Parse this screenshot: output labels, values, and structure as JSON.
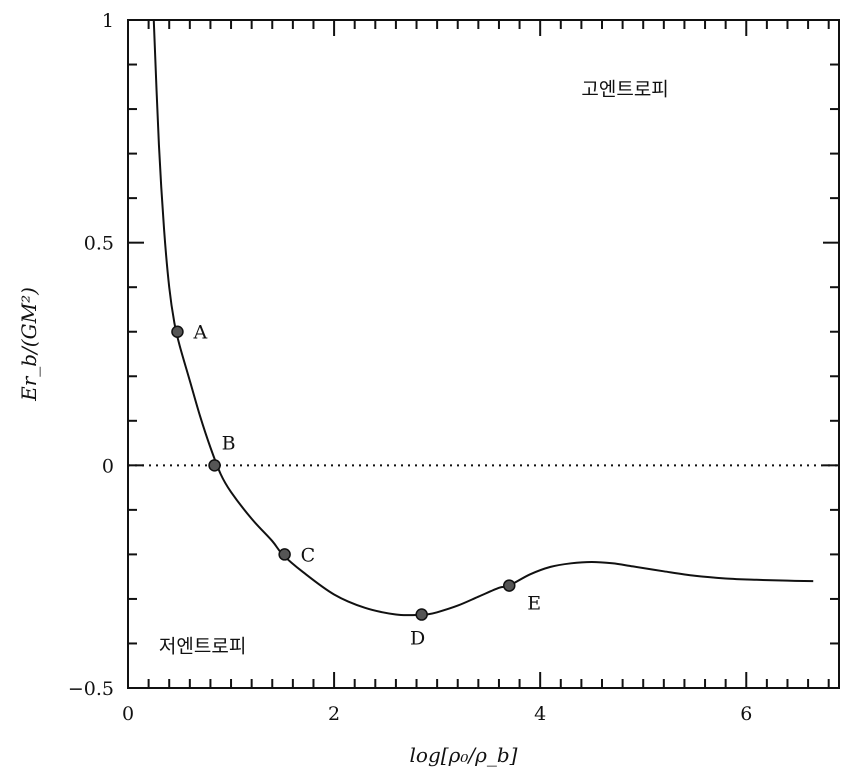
{
  "chart_data": {
    "type": "line",
    "xlabel": "log[ρ₀/ρ_b]",
    "ylabel": "Er_b/(GM²)",
    "xlim": [
      0,
      6.9
    ],
    "ylim": [
      -0.5,
      1
    ],
    "x_ticks": [
      0,
      2,
      4,
      6
    ],
    "x_tick_labels": [
      "0",
      "2",
      "4",
      "6"
    ],
    "y_ticks": [
      -0.5,
      0,
      0.5,
      1
    ],
    "y_tick_labels": [
      "−0.5",
      "0",
      "0.5",
      "1"
    ],
    "reference_line": {
      "y": 0,
      "style": "dotted"
    },
    "series": [
      {
        "x": [
          0.25,
          0.3,
          0.35,
          0.4,
          0.45,
          0.5,
          0.6,
          0.7,
          0.8,
          0.9,
          1.0,
          1.2,
          1.4,
          1.5,
          1.7,
          2.0,
          2.3,
          2.6,
          2.8,
          2.9,
          3.0,
          3.2,
          3.4,
          3.6,
          3.7,
          3.9,
          4.1,
          4.3,
          4.5,
          4.7,
          4.9,
          5.2,
          5.5,
          5.8,
          6.1,
          6.4,
          6.65
        ],
        "y": [
          1.0,
          0.72,
          0.53,
          0.4,
          0.32,
          0.27,
          0.19,
          0.11,
          0.04,
          -0.02,
          -0.06,
          -0.12,
          -0.17,
          -0.2,
          -0.24,
          -0.29,
          -0.32,
          -0.335,
          -0.336,
          -0.335,
          -0.33,
          -0.315,
          -0.295,
          -0.275,
          -0.27,
          -0.245,
          -0.228,
          -0.22,
          -0.217,
          -0.22,
          -0.227,
          -0.238,
          -0.248,
          -0.254,
          -0.257,
          -0.259,
          -0.26
        ]
      }
    ],
    "points": [
      {
        "label": "A",
        "x": 0.48,
        "y": 0.3,
        "label_pos": "right"
      },
      {
        "label": "B",
        "x": 0.84,
        "y": 0.0,
        "label_pos": "above"
      },
      {
        "label": "C",
        "x": 1.52,
        "y": -0.2,
        "label_pos": "right"
      },
      {
        "label": "D",
        "x": 2.85,
        "y": -0.335,
        "label_pos": "below"
      },
      {
        "label": "E",
        "x": 3.7,
        "y": -0.27,
        "label_pos": "below-right"
      }
    ],
    "annotations": [
      {
        "text": "고엔트로피",
        "x": 4.4,
        "y": 0.83
      },
      {
        "text": "저엔트로피",
        "x": 0.3,
        "y": -0.42
      }
    ]
  }
}
